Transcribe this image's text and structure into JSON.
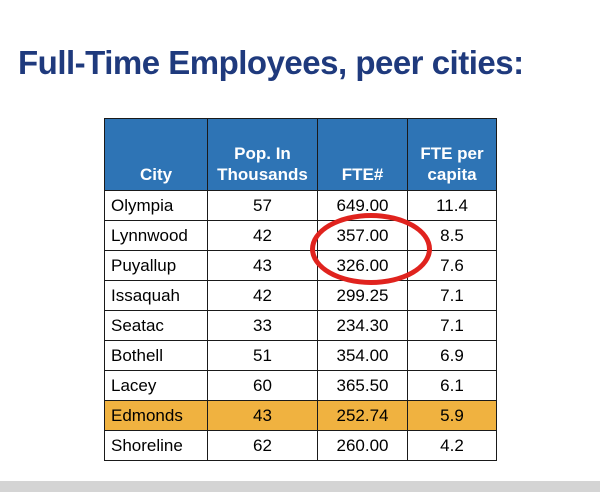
{
  "slide": {
    "title": "Full-Time Employees, peer cities:"
  },
  "table": {
    "columns": [
      {
        "key": "city",
        "label_lines": [
          "City"
        ],
        "align": "left"
      },
      {
        "key": "pop_in_thousands",
        "label_lines": [
          "Pop. In",
          "Thousands"
        ],
        "align": "center"
      },
      {
        "key": "fte",
        "label_lines": [
          "FTE#"
        ],
        "align": "center"
      },
      {
        "key": "fte_per_capita",
        "label_lines": [
          "FTE per",
          "capita"
        ],
        "align": "center"
      }
    ],
    "rows": [
      [
        "Olympia",
        "57",
        "649.00",
        "11.4"
      ],
      [
        "Lynnwood",
        "42",
        "357.00",
        "8.5"
      ],
      [
        "Puyallup",
        "43",
        "326.00",
        "7.6"
      ],
      [
        "Issaquah",
        "42",
        "299.25",
        "7.1"
      ],
      [
        "Seatac",
        "33",
        "234.30",
        "7.1"
      ],
      [
        "Bothell",
        "51",
        "354.00",
        "6.9"
      ],
      [
        "Lacey",
        "60",
        "365.50",
        "6.1"
      ],
      [
        "Edmonds",
        "43",
        "252.74",
        "5.9"
      ],
      [
        "Shoreline",
        "62",
        "260.00",
        "4.2"
      ]
    ],
    "highlight_row_index": 7,
    "highlight_row_city": "Edmonds"
  },
  "annotation": {
    "shape": "red-ellipse",
    "circled_values": [
      "357.00",
      "326.00"
    ],
    "circled_cities": [
      "Lynnwood",
      "Puyallup"
    ],
    "circled_column": "FTE#"
  },
  "colors": {
    "title_color": "#1f3a7d",
    "header_bg": "#2E74B5",
    "header_text": "#ffffff",
    "highlight_bg": "#F0B240",
    "ellipse_color": "#E0231E",
    "bottom_bar": "#D4D4D4",
    "row_text": "#000000"
  },
  "chart_data": {
    "type": "table",
    "title": "Full-Time Employees, peer cities",
    "columns": [
      "City",
      "Pop. In Thousands",
      "FTE#",
      "FTE per capita"
    ],
    "rows": [
      [
        "Olympia",
        57,
        649.0,
        11.4
      ],
      [
        "Lynnwood",
        42,
        357.0,
        8.5
      ],
      [
        "Puyallup",
        43,
        326.0,
        7.6
      ],
      [
        "Issaquah",
        42,
        299.25,
        7.1
      ],
      [
        "Seatac",
        33,
        234.3,
        7.1
      ],
      [
        "Bothell",
        51,
        354.0,
        6.9
      ],
      [
        "Lacey",
        60,
        365.5,
        6.1
      ],
      [
        "Edmonds",
        43,
        252.74,
        5.9
      ],
      [
        "Shoreline",
        62,
        260.0,
        4.2
      ]
    ],
    "highlighted_row": "Edmonds",
    "annotations": [
      "Red ellipse circling FTE# values 357.00 (Lynnwood) and 326.00 (Puyallup)"
    ]
  }
}
